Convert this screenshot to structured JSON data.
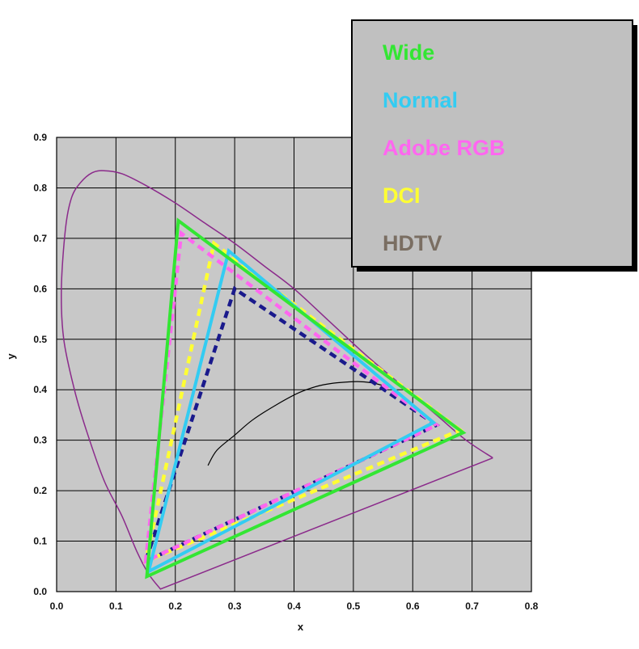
{
  "chart_data": {
    "type": "line",
    "xlabel": "x",
    "ylabel": "y",
    "xlim": [
      0,
      0.8
    ],
    "ylim": [
      0,
      0.9
    ],
    "x_ticks": [
      "0.0",
      "0.1",
      "0.2",
      "0.3",
      "0.4",
      "0.5",
      "0.6",
      "0.7",
      "0.8"
    ],
    "y_ticks": [
      "0.0",
      "0.1",
      "0.2",
      "0.3",
      "0.4",
      "0.5",
      "0.6",
      "0.7",
      "0.8",
      "0.9"
    ],
    "grid": true,
    "legend_position": "top-right",
    "spectral_locus": {
      "color": "#8b2a8b",
      "points": [
        [
          0.735,
          0.265
        ],
        [
          0.69,
          0.3
        ],
        [
          0.64,
          0.35
        ],
        [
          0.58,
          0.41
        ],
        [
          0.52,
          0.47
        ],
        [
          0.46,
          0.535
        ],
        [
          0.4,
          0.6
        ],
        [
          0.35,
          0.645
        ],
        [
          0.3,
          0.69
        ],
        [
          0.25,
          0.73
        ],
        [
          0.2,
          0.77
        ],
        [
          0.15,
          0.805
        ],
        [
          0.11,
          0.828
        ],
        [
          0.08,
          0.834
        ],
        [
          0.06,
          0.83
        ],
        [
          0.04,
          0.81
        ],
        [
          0.025,
          0.78
        ],
        [
          0.015,
          0.72
        ],
        [
          0.008,
          0.6
        ],
        [
          0.012,
          0.5
        ],
        [
          0.03,
          0.4
        ],
        [
          0.05,
          0.32
        ],
        [
          0.08,
          0.22
        ],
        [
          0.11,
          0.15
        ],
        [
          0.135,
          0.08
        ],
        [
          0.155,
          0.035
        ],
        [
          0.175,
          0.005
        ],
        [
          0.735,
          0.265
        ]
      ]
    },
    "planckian_locus": {
      "color": "#000000",
      "points": [
        [
          0.255,
          0.25
        ],
        [
          0.27,
          0.28
        ],
        [
          0.3,
          0.31
        ],
        [
          0.33,
          0.34
        ],
        [
          0.37,
          0.37
        ],
        [
          0.41,
          0.395
        ],
        [
          0.45,
          0.41
        ],
        [
          0.5,
          0.416
        ],
        [
          0.53,
          0.414
        ],
        [
          0.56,
          0.405
        ]
      ]
    },
    "series": [
      {
        "name": "Wide",
        "color": "#33e633",
        "dash": "solid",
        "width": 4,
        "points": [
          [
            0.685,
            0.315
          ],
          [
            0.205,
            0.735
          ],
          [
            0.152,
            0.03
          ]
        ]
      },
      {
        "name": "Normal",
        "color": "#33ccf2",
        "dash": "solid",
        "width": 4,
        "points": [
          [
            0.635,
            0.335
          ],
          [
            0.29,
            0.675
          ],
          [
            0.155,
            0.04
          ]
        ]
      },
      {
        "name": "Adobe RGB",
        "color": "#ff66f0",
        "dash": "dash",
        "width": 4.5,
        "points": [
          [
            0.64,
            0.33
          ],
          [
            0.21,
            0.71
          ],
          [
            0.15,
            0.06
          ]
        ]
      },
      {
        "name": "DCI",
        "color": "#ffff33",
        "dash": "dash",
        "width": 4.5,
        "points": [
          [
            0.68,
            0.32
          ],
          [
            0.265,
            0.69
          ],
          [
            0.15,
            0.06
          ]
        ]
      },
      {
        "name": "HDTV",
        "color": "#1a1a8c",
        "dash": "dash",
        "width": 4.5,
        "points": [
          [
            0.64,
            0.33
          ],
          [
            0.3,
            0.6
          ],
          [
            0.15,
            0.06
          ]
        ]
      }
    ],
    "legend": [
      {
        "label": "Wide",
        "color": "#33e633"
      },
      {
        "label": "Normal",
        "color": "#33ccf2"
      },
      {
        "label": "Adobe RGB",
        "color": "#ff66f0"
      },
      {
        "label": "DCI",
        "color": "#ffff33"
      },
      {
        "label": "HDTV",
        "color": "#7a6e62"
      }
    ],
    "plot_background": "#c8c8c8",
    "legend_background": "#c0c0c0"
  }
}
